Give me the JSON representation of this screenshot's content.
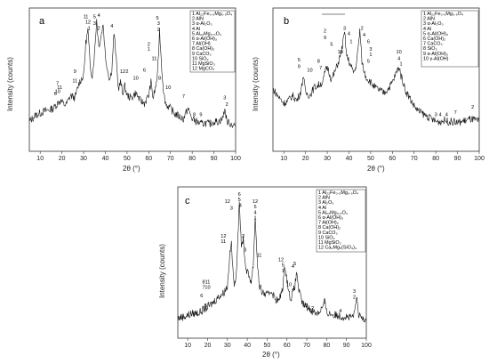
{
  "chart_data": [
    {
      "type": "line",
      "panel": "a",
      "xlabel": "2θ (°)",
      "ylabel": "Intensity (counts)",
      "xlim": [
        5,
        100
      ],
      "xticks": [
        "10",
        "20",
        "30",
        "40",
        "50",
        "60",
        "70",
        "80",
        "90",
        "100"
      ],
      "legend": [
        "1 Al₂₂Fe₀.₅Mg₀.₅O₄",
        "2 AlN",
        "3 α-Al₂O₃",
        "4 Al",
        "5 Al₂₂Mg₀.₅O₄",
        "6 α-Al(OH)₃",
        "7 Al(OH)",
        "8 Ca(OH)₂",
        "9 CaCO₃",
        "10 SiO₂",
        "11 MgSiO₃",
        "12 MgCO₃"
      ],
      "legend_position": "top-right",
      "series": [
        {
          "x": [
            5,
            8,
            12,
            16,
            18,
            19,
            20,
            21,
            22,
            24,
            26,
            28,
            30,
            31,
            32,
            33,
            34,
            35,
            36,
            37,
            38,
            39,
            40,
            41,
            42,
            43,
            44,
            45,
            46,
            47,
            48,
            49,
            50,
            52,
            54,
            56,
            58,
            60,
            61,
            62,
            63,
            64,
            65,
            66,
            67,
            68,
            70,
            72,
            74,
            76,
            78,
            80,
            82,
            84,
            86,
            88,
            90,
            92,
            94,
            95,
            96,
            98,
            100
          ],
          "y": [
            0.2,
            0.25,
            0.28,
            0.3,
            0.34,
            0.36,
            0.35,
            0.33,
            0.33,
            0.4,
            0.38,
            0.5,
            0.55,
            0.8,
            0.9,
            0.62,
            0.55,
            0.72,
            0.98,
            0.78,
            0.85,
            0.95,
            0.7,
            0.6,
            0.52,
            0.6,
            0.88,
            0.68,
            0.45,
            0.5,
            0.42,
            0.47,
            0.4,
            0.38,
            0.42,
            0.36,
            0.34,
            0.4,
            0.5,
            0.38,
            0.45,
            0.55,
            0.9,
            0.6,
            0.4,
            0.33,
            0.3,
            0.26,
            0.24,
            0.22,
            0.3,
            0.22,
            0.2,
            0.18,
            0.19,
            0.18,
            0.2,
            0.2,
            0.22,
            0.3,
            0.2,
            0.18,
            0.17
          ]
        }
      ],
      "annotations": [
        {
          "text": "11",
          "x": 31,
          "y": 0.99
        },
        {
          "text": "5",
          "x": 35,
          "y": 0.99
        },
        {
          "text": "4",
          "x": 37,
          "y": 1.0
        },
        {
          "text": "12",
          "x": 32,
          "y": 0.95
        },
        {
          "text": "3",
          "x": 35,
          "y": 0.94
        },
        {
          "text": "1",
          "x": 32.5,
          "y": 0.9
        },
        {
          "text": "2",
          "x": 37,
          "y": 0.9
        },
        {
          "text": "4",
          "x": 43,
          "y": 0.92
        },
        {
          "text": "5",
          "x": 64,
          "y": 0.98
        },
        {
          "text": "3",
          "x": 64.5,
          "y": 0.94
        },
        {
          "text": "2",
          "x": 64.5,
          "y": 0.89
        },
        {
          "text": "2",
          "x": 60,
          "y": 0.78
        },
        {
          "text": "1",
          "x": 60,
          "y": 0.74
        },
        {
          "text": "11",
          "x": 62.5,
          "y": 0.67
        },
        {
          "text": "7",
          "x": 18,
          "y": 0.48
        },
        {
          "text": "11",
          "x": 19,
          "y": 0.45
        },
        {
          "text": "10",
          "x": 18,
          "y": 0.42
        },
        {
          "text": "6",
          "x": 17,
          "y": 0.4
        },
        {
          "text": "9",
          "x": 26,
          "y": 0.57
        },
        {
          "text": "11",
          "x": 26,
          "y": 0.5
        },
        {
          "text": "12",
          "x": 48,
          "y": 0.57
        },
        {
          "text": "2",
          "x": 50,
          "y": 0.57
        },
        {
          "text": "10",
          "x": 54,
          "y": 0.52
        },
        {
          "text": "6",
          "x": 58,
          "y": 0.58
        },
        {
          "text": "8",
          "x": 65,
          "y": 0.52
        },
        {
          "text": "10",
          "x": 69,
          "y": 0.45
        },
        {
          "text": "7",
          "x": 76,
          "y": 0.38
        },
        {
          "text": "8",
          "x": 81,
          "y": 0.24
        },
        {
          "text": "9",
          "x": 84,
          "y": 0.24
        },
        {
          "text": "3",
          "x": 95,
          "y": 0.37
        },
        {
          "text": "2",
          "x": 96,
          "y": 0.32
        }
      ]
    },
    {
      "type": "line",
      "panel": "b",
      "xlabel": "2θ (°)",
      "ylabel": "Intensity (counts)",
      "xlim": [
        5,
        100
      ],
      "xticks": [
        "10",
        "20",
        "30",
        "40",
        "50",
        "60",
        "70",
        "80",
        "90",
        "100"
      ],
      "legend": [
        "1 Al₂₂Fe₀.₅Mg₀.₅O₄",
        "2 AlN",
        "3 α-Al₂O₃",
        "4 Al",
        "5 α-Al(OH)₃",
        "6 Ca(OH)₂",
        "7 CaCO₃",
        "8 SiO₂",
        "9 α-Al(OH)₃",
        "10 γ-Al(OH)"
      ],
      "legend_position": "top-right",
      "series": [
        {
          "x": [
            5,
            8,
            10,
            12,
            14,
            16,
            18,
            19,
            20,
            22,
            24,
            26,
            28,
            29,
            30,
            32,
            34,
            35,
            36,
            37,
            38,
            39,
            40,
            41,
            42,
            43,
            44,
            45,
            46,
            47,
            48,
            50,
            52,
            54,
            56,
            58,
            60,
            62,
            63,
            64,
            65,
            66,
            68,
            70,
            72,
            74,
            76,
            78,
            80,
            82,
            84,
            86,
            88,
            90,
            92,
            94,
            96,
            98,
            100
          ],
          "y": [
            0.45,
            0.38,
            0.34,
            0.36,
            0.4,
            0.36,
            0.44,
            0.56,
            0.42,
            0.4,
            0.46,
            0.48,
            0.5,
            0.58,
            0.62,
            0.52,
            0.6,
            0.65,
            0.7,
            0.78,
            0.88,
            0.7,
            0.66,
            0.62,
            0.58,
            0.6,
            0.72,
            0.9,
            0.66,
            0.58,
            0.54,
            0.5,
            0.46,
            0.44,
            0.42,
            0.45,
            0.5,
            0.58,
            0.62,
            0.55,
            0.5,
            0.44,
            0.38,
            0.32,
            0.28,
            0.26,
            0.24,
            0.22,
            0.2,
            0.2,
            0.21,
            0.2,
            0.2,
            0.19,
            0.2,
            0.21,
            0.22,
            0.21,
            0.2
          ]
        }
      ],
      "annotations": [
        {
          "text": "2",
          "x": 29,
          "y": 0.88
        },
        {
          "text": "9",
          "x": 29,
          "y": 0.83
        },
        {
          "text": "3",
          "x": 38,
          "y": 0.9
        },
        {
          "text": "4",
          "x": 40,
          "y": 0.86
        },
        {
          "text": "2",
          "x": 46,
          "y": 0.9
        },
        {
          "text": "4",
          "x": 47,
          "y": 0.85
        },
        {
          "text": "6",
          "x": 49,
          "y": 0.8
        },
        {
          "text": "3",
          "x": 50,
          "y": 0.74
        },
        {
          "text": "1",
          "x": 50,
          "y": 0.7
        },
        {
          "text": "5",
          "x": 49,
          "y": 0.65
        },
        {
          "text": "5",
          "x": 17,
          "y": 0.66
        },
        {
          "text": "9",
          "x": 17,
          "y": 0.61
        },
        {
          "text": "10",
          "x": 22,
          "y": 0.58
        },
        {
          "text": "8",
          "x": 26,
          "y": 0.65
        },
        {
          "text": "7",
          "x": 27,
          "y": 0.6
        },
        {
          "text": "10",
          "x": 36,
          "y": 0.72
        },
        {
          "text": "5",
          "x": 32,
          "y": 0.78
        },
        {
          "text": "1",
          "x": 41,
          "y": 0.8
        },
        {
          "text": "10",
          "x": 63,
          "y": 0.72
        },
        {
          "text": "4",
          "x": 63,
          "y": 0.67
        },
        {
          "text": "1",
          "x": 64,
          "y": 0.63
        },
        {
          "text": "3",
          "x": 80,
          "y": 0.24
        },
        {
          "text": "4",
          "x": 82,
          "y": 0.24
        },
        {
          "text": "4",
          "x": 85,
          "y": 0.24
        },
        {
          "text": "7",
          "x": 89,
          "y": 0.26
        },
        {
          "text": "2",
          "x": 97,
          "y": 0.3
        }
      ]
    },
    {
      "type": "line",
      "panel": "c",
      "xlabel": "2θ (°)",
      "ylabel": "Intensity (counts)",
      "xlim": [
        5,
        100
      ],
      "xticks": [
        "10",
        "20",
        "30",
        "40",
        "50",
        "60",
        "70",
        "80",
        "90",
        "100"
      ],
      "legend": [
        "1 Al₂₂Fe₀.₅Mg₀.₅O₄",
        "2 AlN",
        "3 Al₂O₃",
        "4 Al",
        "5 Al₂₂Mg₀.₅O₄",
        "6 α-Al(OH)₃",
        "7 Al(OH)₃",
        "8 Ca(OH)₂",
        "9 CaCO₃",
        "10 SiO₂",
        "11 MgSiO₃",
        "12 Ca₂Mg₅(SiO₄)₄"
      ],
      "legend_position": "top-right",
      "series": [
        {
          "x": [
            5,
            8,
            12,
            16,
            18,
            20,
            22,
            24,
            26,
            28,
            30,
            31,
            32,
            33,
            34,
            35,
            36,
            37,
            38,
            39,
            40,
            41,
            42,
            43,
            44,
            45,
            46,
            47,
            48,
            50,
            52,
            54,
            56,
            58,
            59,
            60,
            61,
            62,
            64,
            65,
            66,
            67,
            68,
            70,
            72,
            74,
            76,
            78,
            79,
            80,
            82,
            84,
            86,
            88,
            90,
            92,
            94,
            95,
            96,
            98,
            100
          ],
          "y": [
            0.12,
            0.13,
            0.15,
            0.16,
            0.18,
            0.2,
            0.22,
            0.25,
            0.28,
            0.3,
            0.35,
            0.55,
            0.66,
            0.4,
            0.35,
            0.6,
            0.98,
            0.62,
            0.7,
            0.5,
            0.45,
            0.42,
            0.38,
            0.5,
            0.85,
            0.55,
            0.35,
            0.32,
            0.3,
            0.28,
            0.32,
            0.26,
            0.24,
            0.35,
            0.5,
            0.4,
            0.3,
            0.26,
            0.35,
            0.45,
            0.32,
            0.26,
            0.22,
            0.2,
            0.18,
            0.16,
            0.16,
            0.2,
            0.24,
            0.16,
            0.15,
            0.14,
            0.14,
            0.13,
            0.13,
            0.12,
            0.14,
            0.28,
            0.14,
            0.12,
            0.12
          ]
        }
      ],
      "annotations": [
        {
          "text": "6",
          "x": 36,
          "y": 1.0
        },
        {
          "text": "5",
          "x": 36,
          "y": 0.96
        },
        {
          "text": "12",
          "x": 30,
          "y": 0.95
        },
        {
          "text": "3",
          "x": 32,
          "y": 0.9
        },
        {
          "text": "4",
          "x": 36.5,
          "y": 0.92
        },
        {
          "text": "12",
          "x": 44,
          "y": 0.95
        },
        {
          "text": "5",
          "x": 44,
          "y": 0.91
        },
        {
          "text": "4",
          "x": 44,
          "y": 0.87
        },
        {
          "text": "1",
          "x": 44,
          "y": 0.83
        },
        {
          "text": "12",
          "x": 28,
          "y": 0.7
        },
        {
          "text": "11",
          "x": 28,
          "y": 0.66
        },
        {
          "text": "2",
          "x": 38,
          "y": 0.7
        },
        {
          "text": "3",
          "x": 39,
          "y": 0.6
        },
        {
          "text": "11",
          "x": 46,
          "y": 0.56
        },
        {
          "text": "12",
          "x": 57,
          "y": 0.53
        },
        {
          "text": "5",
          "x": 58,
          "y": 0.49
        },
        {
          "text": "1",
          "x": 58,
          "y": 0.45
        },
        {
          "text": "4",
          "x": 63,
          "y": 0.48
        },
        {
          "text": "5",
          "x": 64,
          "y": 0.5
        },
        {
          "text": "8",
          "x": 18,
          "y": 0.37
        },
        {
          "text": "11",
          "x": 20,
          "y": 0.37
        },
        {
          "text": "7",
          "x": 18,
          "y": 0.33
        },
        {
          "text": "10",
          "x": 20,
          "y": 0.33
        },
        {
          "text": "6",
          "x": 17,
          "y": 0.27
        },
        {
          "text": "5",
          "x": 19,
          "y": 0.2
        },
        {
          "text": "10",
          "x": 61,
          "y": 0.35
        },
        {
          "text": "3",
          "x": 70,
          "y": 0.2
        },
        {
          "text": "2",
          "x": 73,
          "y": 0.18
        },
        {
          "text": "4",
          "x": 79,
          "y": 0.22
        },
        {
          "text": "4",
          "x": 87,
          "y": 0.16
        },
        {
          "text": "3",
          "x": 94,
          "y": 0.3
        },
        {
          "text": "2",
          "x": 94,
          "y": 0.26
        }
      ]
    }
  ]
}
